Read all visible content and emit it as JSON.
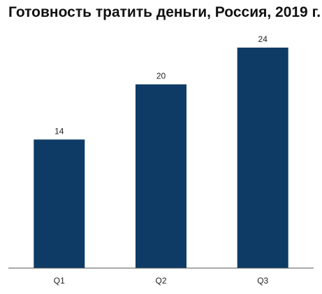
{
  "chart_data": {
    "type": "bar",
    "title": "Готовность тратить деньги, Россия, 2019 г.",
    "xlabel": "",
    "ylabel": "",
    "categories": [
      "Q1",
      "Q2",
      "Q3"
    ],
    "values": [
      14,
      20,
      24
    ],
    "ylim": [
      0,
      24
    ],
    "grid": false,
    "legend": "none",
    "bar_color": "#0d3b66",
    "axis_color": "#555555"
  }
}
